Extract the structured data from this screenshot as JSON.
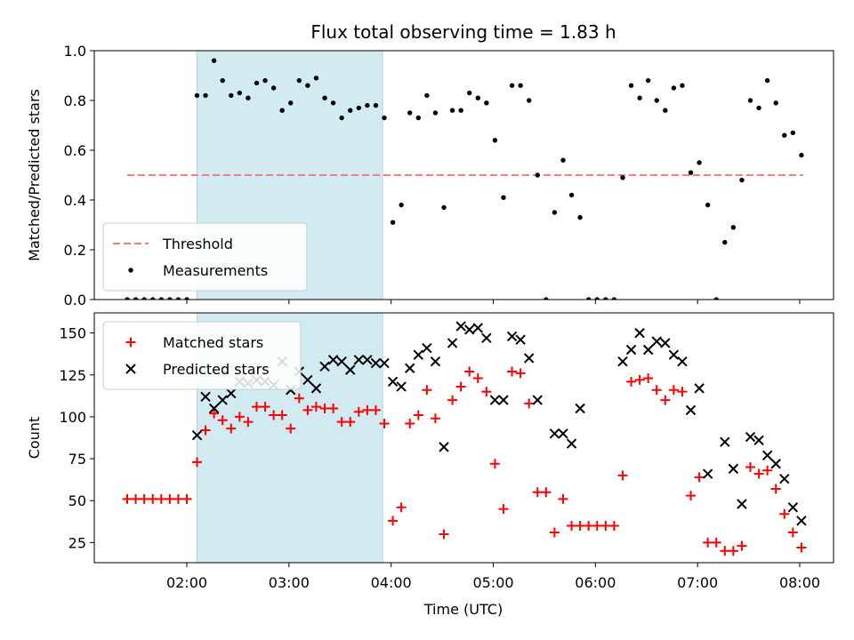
{
  "chart_data": {
    "title": "Flux total observing time = 1.83 h",
    "shaded_interval": [
      "02:06",
      "03:55"
    ],
    "shade_color": "#add8e6",
    "x_ticks": [
      "02:00",
      "03:00",
      "04:00",
      "05:00",
      "06:00",
      "07:00",
      "08:00"
    ],
    "xlabel": "Time (UTC)",
    "panels": [
      {
        "type": "scatter",
        "ylabel": "Matched/Predicted stars",
        "ylim": [
          0,
          1.0
        ],
        "y_ticks": [
          "0.0",
          "0.2",
          "0.4",
          "0.6",
          "0.8",
          "1.0"
        ],
        "legend_position": "lower-left",
        "threshold": {
          "name": "Threshold",
          "value": 0.5,
          "x_range": [
            "01:25",
            "08:02"
          ],
          "color": "#f08080"
        },
        "series": [
          {
            "name": "Measurements",
            "color": "#000000",
            "marker": "dot",
            "points": [
              [
                "01:25",
                0
              ],
              [
                "01:30",
                0
              ],
              [
                "01:35",
                0
              ],
              [
                "01:40",
                0
              ],
              [
                "01:45",
                0
              ],
              [
                "01:50",
                0
              ],
              [
                "01:55",
                0
              ],
              [
                "02:00",
                0
              ],
              [
                "02:06",
                0.82
              ],
              [
                "02:11",
                0.82
              ],
              [
                "02:16",
                0.96
              ],
              [
                "02:21",
                0.88
              ],
              [
                "02:26",
                0.82
              ],
              [
                "02:31",
                0.83
              ],
              [
                "02:36",
                0.81
              ],
              [
                "02:41",
                0.87
              ],
              [
                "02:46",
                0.88
              ],
              [
                "02:51",
                0.85
              ],
              [
                "02:56",
                0.76
              ],
              [
                "03:01",
                0.79
              ],
              [
                "03:06",
                0.88
              ],
              [
                "03:11",
                0.86
              ],
              [
                "03:16",
                0.89
              ],
              [
                "03:21",
                0.81
              ],
              [
                "03:26",
                0.79
              ],
              [
                "03:31",
                0.73
              ],
              [
                "03:36",
                0.76
              ],
              [
                "03:41",
                0.77
              ],
              [
                "03:46",
                0.78
              ],
              [
                "03:51",
                0.78
              ],
              [
                "03:56",
                0.73
              ],
              [
                "04:01",
                0.31
              ],
              [
                "04:06",
                0.38
              ],
              [
                "04:11",
                0.75
              ],
              [
                "04:16",
                0.73
              ],
              [
                "04:21",
                0.82
              ],
              [
                "04:26",
                0.75
              ],
              [
                "04:31",
                0.37
              ],
              [
                "04:36",
                0.76
              ],
              [
                "04:41",
                0.76
              ],
              [
                "04:46",
                0.83
              ],
              [
                "04:51",
                0.81
              ],
              [
                "04:56",
                0.79
              ],
              [
                "05:01",
                0.64
              ],
              [
                "05:06",
                0.41
              ],
              [
                "05:11",
                0.86
              ],
              [
                "05:16",
                0.86
              ],
              [
                "05:21",
                0.8
              ],
              [
                "05:26",
                0.5
              ],
              [
                "05:31",
                0
              ],
              [
                "05:36",
                0.35
              ],
              [
                "05:41",
                0.56
              ],
              [
                "05:46",
                0.42
              ],
              [
                "05:51",
                0.33
              ],
              [
                "05:56",
                0
              ],
              [
                "06:01",
                0
              ],
              [
                "06:06",
                0
              ],
              [
                "06:11",
                0
              ],
              [
                "06:16",
                0.49
              ],
              [
                "06:21",
                0.86
              ],
              [
                "06:26",
                0.81
              ],
              [
                "06:31",
                0.88
              ],
              [
                "06:36",
                0.8
              ],
              [
                "06:41",
                0.76
              ],
              [
                "06:46",
                0.85
              ],
              [
                "06:51",
                0.86
              ],
              [
                "06:56",
                0.51
              ],
              [
                "07:01",
                0.55
              ],
              [
                "07:06",
                0.38
              ],
              [
                "07:11",
                0
              ],
              [
                "07:16",
                0.23
              ],
              [
                "07:21",
                0.29
              ],
              [
                "07:26",
                0.48
              ],
              [
                "07:31",
                0.8
              ],
              [
                "07:36",
                0.77
              ],
              [
                "07:41",
                0.88
              ],
              [
                "07:46",
                0.79
              ],
              [
                "07:51",
                0.66
              ],
              [
                "07:56",
                0.67
              ],
              [
                "08:01",
                0.58
              ]
            ]
          }
        ]
      },
      {
        "type": "scatter",
        "ylabel": "Count",
        "ylim": [
          13,
          162
        ],
        "y_ticks": [
          "25",
          "50",
          "75",
          "100",
          "125",
          "150"
        ],
        "legend_position": "upper-left",
        "series": [
          {
            "name": "Matched stars",
            "color": "#ff0000",
            "marker": "plus",
            "points": [
              [
                "01:25",
                51
              ],
              [
                "01:30",
                51
              ],
              [
                "01:35",
                51
              ],
              [
                "01:40",
                51
              ],
              [
                "01:45",
                51
              ],
              [
                "01:50",
                51
              ],
              [
                "01:55",
                51
              ],
              [
                "02:00",
                51
              ],
              [
                "02:06",
                73
              ],
              [
                "02:11",
                92
              ],
              [
                "02:16",
                102
              ],
              [
                "02:21",
                98
              ],
              [
                "02:26",
                93
              ],
              [
                "02:31",
                100
              ],
              [
                "02:36",
                97
              ],
              [
                "02:41",
                106
              ],
              [
                "02:46",
                106
              ],
              [
                "02:51",
                101
              ],
              [
                "02:56",
                101
              ],
              [
                "03:01",
                93
              ],
              [
                "03:06",
                111
              ],
              [
                "03:11",
                104
              ],
              [
                "03:16",
                106
              ],
              [
                "03:21",
                105
              ],
              [
                "03:26",
                105
              ],
              [
                "03:31",
                97
              ],
              [
                "03:36",
                97
              ],
              [
                "03:41",
                103
              ],
              [
                "03:46",
                104
              ],
              [
                "03:51",
                104
              ],
              [
                "03:56",
                96
              ],
              [
                "04:01",
                38
              ],
              [
                "04:06",
                46
              ],
              [
                "04:11",
                96
              ],
              [
                "04:16",
                101
              ],
              [
                "04:21",
                116
              ],
              [
                "04:26",
                99
              ],
              [
                "04:31",
                30
              ],
              [
                "04:36",
                110
              ],
              [
                "04:41",
                118
              ],
              [
                "04:46",
                127
              ],
              [
                "04:51",
                123
              ],
              [
                "04:56",
                115
              ],
              [
                "05:01",
                72
              ],
              [
                "05:06",
                45
              ],
              [
                "05:11",
                127
              ],
              [
                "05:16",
                126
              ],
              [
                "05:21",
                108
              ],
              [
                "05:26",
                55
              ],
              [
                "05:31",
                55
              ],
              [
                "05:36",
                31
              ],
              [
                "05:41",
                51
              ],
              [
                "05:46",
                35
              ],
              [
                "05:51",
                35
              ],
              [
                "05:56",
                35
              ],
              [
                "06:01",
                35
              ],
              [
                "06:06",
                35
              ],
              [
                "06:11",
                35
              ],
              [
                "06:16",
                65
              ],
              [
                "06:21",
                121
              ],
              [
                "06:26",
                122
              ],
              [
                "06:31",
                123
              ],
              [
                "06:36",
                116
              ],
              [
                "06:41",
                110
              ],
              [
                "06:46",
                116
              ],
              [
                "06:51",
                115
              ],
              [
                "06:56",
                53
              ],
              [
                "07:01",
                64
              ],
              [
                "07:06",
                25
              ],
              [
                "07:11",
                25
              ],
              [
                "07:16",
                20
              ],
              [
                "07:21",
                20
              ],
              [
                "07:26",
                23
              ],
              [
                "07:31",
                70
              ],
              [
                "07:36",
                66
              ],
              [
                "07:41",
                68
              ],
              [
                "07:46",
                57
              ],
              [
                "07:51",
                42
              ],
              [
                "07:56",
                31
              ],
              [
                "08:01",
                22
              ]
            ]
          },
          {
            "name": "Predicted stars",
            "color": "#000000",
            "marker": "x",
            "points": [
              [
                "02:06",
                89
              ],
              [
                "02:11",
                112
              ],
              [
                "02:16",
                105
              ],
              [
                "02:21",
                110
              ],
              [
                "02:26",
                114
              ],
              [
                "02:31",
                121
              ],
              [
                "02:36",
                120
              ],
              [
                "02:41",
                122
              ],
              [
                "02:46",
                121
              ],
              [
                "02:51",
                119
              ],
              [
                "02:56",
                133
              ],
              [
                "03:01",
                116
              ],
              [
                "03:06",
                127
              ],
              [
                "03:11",
                122
              ],
              [
                "03:16",
                117
              ],
              [
                "03:21",
                130
              ],
              [
                "03:26",
                134
              ],
              [
                "03:31",
                133
              ],
              [
                "03:36",
                128
              ],
              [
                "03:41",
                134
              ],
              [
                "03:46",
                134
              ],
              [
                "03:51",
                132
              ],
              [
                "03:56",
                132
              ],
              [
                "04:01",
                121
              ],
              [
                "04:06",
                118
              ],
              [
                "04:11",
                129
              ],
              [
                "04:16",
                137
              ],
              [
                "04:21",
                141
              ],
              [
                "04:26",
                133
              ],
              [
                "04:31",
                82
              ],
              [
                "04:36",
                144
              ],
              [
                "04:41",
                154
              ],
              [
                "04:46",
                152
              ],
              [
                "04:51",
                153
              ],
              [
                "04:56",
                147
              ],
              [
                "05:01",
                110
              ],
              [
                "05:06",
                110
              ],
              [
                "05:11",
                148
              ],
              [
                "05:16",
                146
              ],
              [
                "05:21",
                135
              ],
              [
                "05:26",
                110
              ],
              [
                "05:36",
                90
              ],
              [
                "05:41",
                90
              ],
              [
                "05:46",
                84
              ],
              [
                "05:51",
                105
              ],
              [
                "06:16",
                133
              ],
              [
                "06:21",
                140
              ],
              [
                "06:26",
                150
              ],
              [
                "06:31",
                140
              ],
              [
                "06:36",
                145
              ],
              [
                "06:41",
                144
              ],
              [
                "06:46",
                137
              ],
              [
                "06:51",
                133
              ],
              [
                "06:56",
                104
              ],
              [
                "07:01",
                117
              ],
              [
                "07:06",
                66
              ],
              [
                "07:16",
                85
              ],
              [
                "07:21",
                69
              ],
              [
                "07:26",
                48
              ],
              [
                "07:31",
                88
              ],
              [
                "07:36",
                86
              ],
              [
                "07:41",
                77
              ],
              [
                "07:46",
                72
              ],
              [
                "07:51",
                63
              ],
              [
                "07:56",
                46
              ],
              [
                "08:01",
                38
              ]
            ]
          }
        ]
      }
    ]
  }
}
